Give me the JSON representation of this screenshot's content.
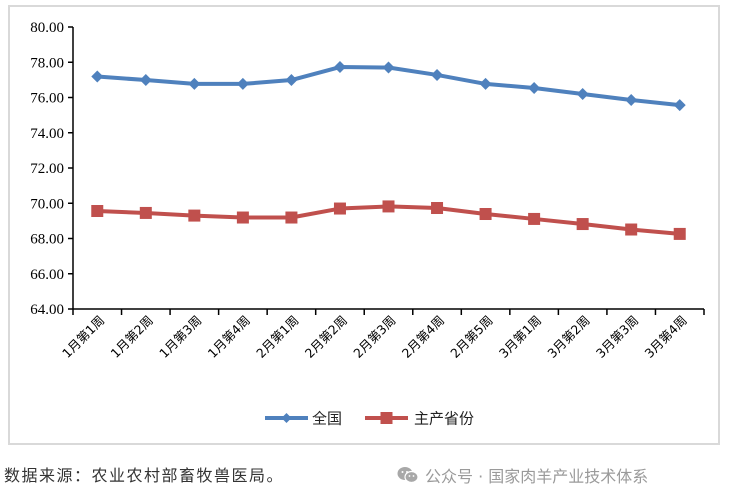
{
  "chart_data": {
    "type": "line",
    "title": "",
    "xlabel": "",
    "ylabel": "",
    "ylim": [
      64,
      80
    ],
    "yticks": [
      "64.00",
      "66.00",
      "68.00",
      "70.00",
      "72.00",
      "74.00",
      "76.00",
      "78.00",
      "80.00"
    ],
    "grid": false,
    "legend_position": "bottom",
    "categories": [
      "1月第1周",
      "1月第2周",
      "1月第3周",
      "1月第4周",
      "2月第1周",
      "2月第2周",
      "2月第3周",
      "2月第4周",
      "2月第5周",
      "3月第1周",
      "3月第2周",
      "3月第3周",
      "3月第4周"
    ],
    "series": [
      {
        "name": "全国",
        "color": "#4f81bd",
        "marker": "diamond",
        "values": [
          77.19,
          76.99,
          76.77,
          76.77,
          76.99,
          77.73,
          77.7,
          77.28,
          76.77,
          76.54,
          76.2,
          75.86,
          75.57
        ]
      },
      {
        "name": "主产省份",
        "color": "#c0504d",
        "marker": "square",
        "values": [
          69.56,
          69.45,
          69.3,
          69.19,
          69.19,
          69.7,
          69.82,
          69.73,
          69.39,
          69.11,
          68.82,
          68.51,
          68.26
        ]
      }
    ]
  },
  "footer": {
    "source_note": "数据来源：农业农村部畜牧兽医局。",
    "watermark": "公众号 · 国家肉羊产业技术体系"
  }
}
